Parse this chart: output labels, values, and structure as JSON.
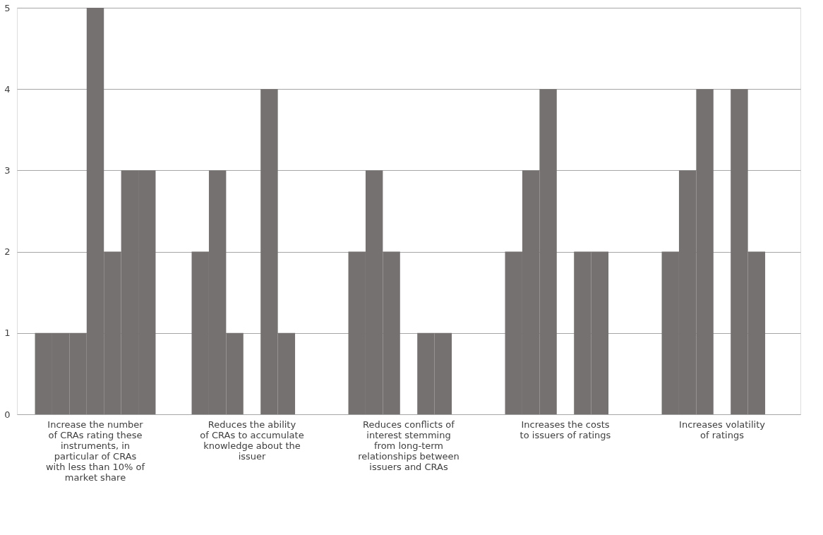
{
  "chart_data": {
    "type": "bar",
    "categories": [
      "Increase the number of CRAs rating these instruments, in particular of CRAs with less than 10% of market share",
      "Reduces the ability of CRAs to accumulate knowledge about the issuer",
      "Reduces conflicts of interest stemming from long-term relationships between issuers and CRAs",
      "Increases the costs to issuers of ratings",
      "Increases volatility of ratings"
    ],
    "series": [
      {
        "color": "#767171",
        "values": [
          1,
          2,
          2,
          2,
          2
        ]
      },
      {
        "color": "#767171",
        "values": [
          1,
          3,
          3,
          3,
          3
        ]
      },
      {
        "color": "#767171",
        "values": [
          1,
          1,
          2,
          4,
          4
        ]
      },
      {
        "color": "#767171",
        "values": [
          5,
          0,
          0,
          0,
          0
        ]
      },
      {
        "color": "#767171",
        "values": [
          2,
          4,
          1,
          2,
          4
        ]
      },
      {
        "color": "#767171",
        "values": [
          3,
          1,
          1,
          2,
          2
        ]
      },
      {
        "color": "#767171",
        "values": [
          3,
          0,
          0,
          0,
          0
        ]
      }
    ],
    "ylim": [
      0,
      5
    ],
    "yticks": [
      0,
      1,
      2,
      3,
      4,
      5
    ],
    "grid": "y"
  }
}
